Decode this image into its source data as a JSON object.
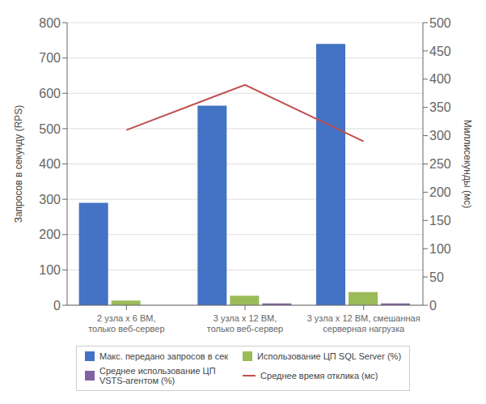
{
  "chart_data": {
    "type": "bar",
    "categories": [
      "2 узла x 6 ВМ,\nтолько веб-сервер",
      "3 узла x 12 ВМ,\nтолько веб-сервер",
      "3 узла x 12 ВМ, смешанная\nсерверная нагрузка"
    ],
    "series": [
      {
        "name": "Макс. передано запросов в сек",
        "color": "#4472C4",
        "values": [
          290,
          565,
          740
        ]
      },
      {
        "name": "Использование ЦП SQL Server (%)",
        "color": "#9BBB59",
        "values": [
          13,
          27,
          37
        ]
      },
      {
        "name": "Среднее использование ЦП\nVSTS-агентом (%)",
        "color": "#8064A2",
        "values": [
          0,
          5,
          5
        ]
      },
      {
        "name": "Среднее время отклика (мс)",
        "color": "#C0504D",
        "values": [
          310,
          390,
          290
        ],
        "type": "line",
        "axis": "y2"
      }
    ],
    "ylabel": "Запросов в секунду (RPS)",
    "y2label": "Миллисекунды (мс)",
    "ylim": [
      0,
      800
    ],
    "yticks": [
      0,
      100,
      200,
      300,
      400,
      500,
      600,
      700,
      800
    ],
    "y2lim": [
      0,
      500
    ],
    "y2ticks": [
      0,
      50,
      100,
      150,
      200,
      250,
      300,
      350,
      400,
      450,
      500
    ],
    "grid": true,
    "legend": "bottom"
  }
}
